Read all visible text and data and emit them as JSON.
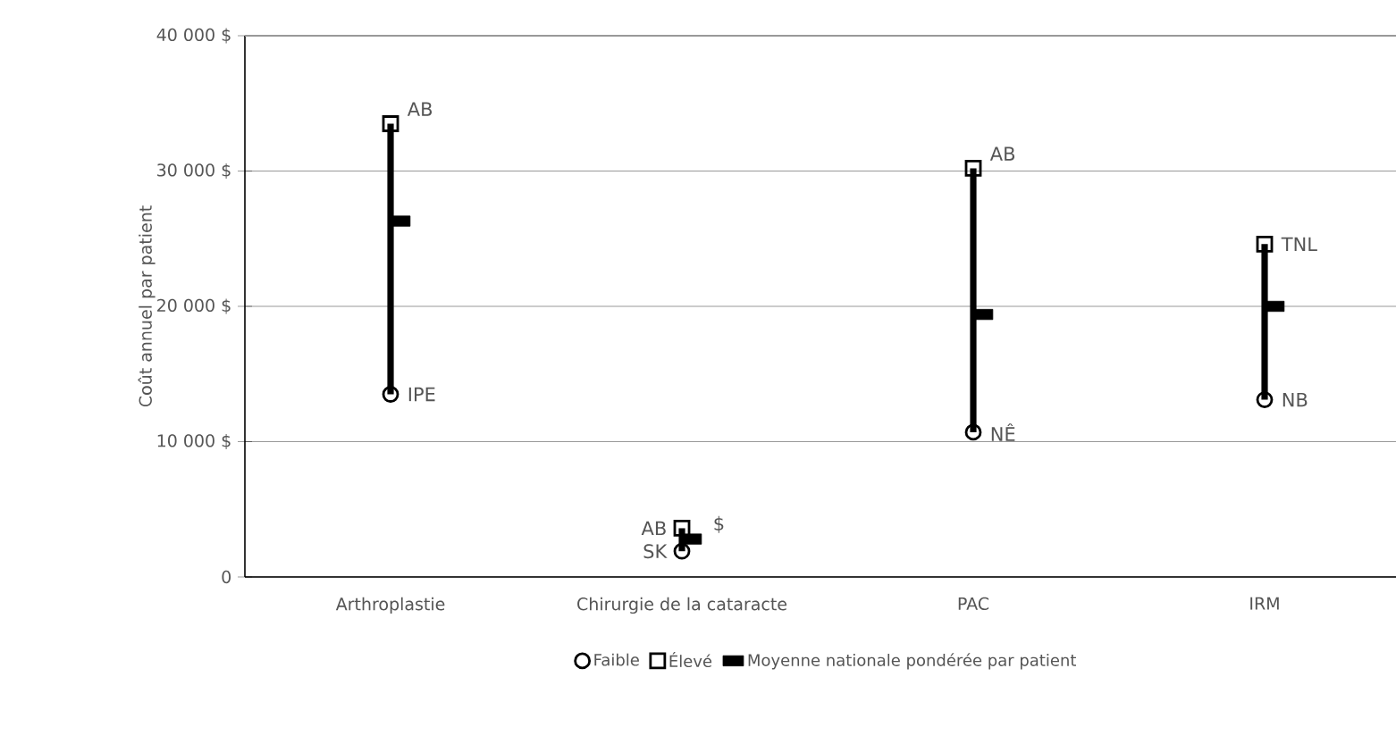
{
  "chart_data": {
    "type": "scatter",
    "ylabel": "Coût annuel par patient",
    "categories": [
      "Arthroplastie",
      "Chirurgie de la cataracte",
      "PAC",
      "IRM"
    ],
    "ylim": [
      0,
      40000
    ],
    "yticks": [
      0,
      {
        "value": 10000,
        "label": "10 000 $"
      },
      {
        "value": 20000,
        "label": "20 000 $"
      },
      {
        "value": 30000,
        "label": "30 000 $"
      },
      {
        "value": 40000,
        "label": "40 000 $"
      }
    ],
    "grid": "y",
    "legend": "bottom",
    "series": [
      {
        "type": "bar",
        "color": "#000000",
        "base": [
          13500,
          1900,
          10700,
          13100
        ],
        "values": [
          20000,
          1700,
          19500,
          11500
        ]
      },
      {
        "name": "Faible",
        "color": "#000000",
        "marker": "circle",
        "values": [
          13500,
          1900,
          10700,
          13100
        ]
      },
      {
        "name": "Élevé",
        "color": "#000000",
        "marker": "square",
        "values": [
          33500,
          3600,
          30200,
          24600
        ]
      },
      {
        "name": "Moyenne nationale pondérée par patient",
        "color": "#000000",
        "values": [
          26300,
          2800,
          19400,
          20000
        ]
      }
    ],
    "annotations": [
      {
        "text": "AB",
        "x": "Arthroplastie",
        "y": 33500
      },
      {
        "text": "IPE",
        "x": "Arthroplastie",
        "y": 13500
      },
      {
        "text": "AB",
        "x": "Chirurgie de la cataracte",
        "y": 3600
      },
      {
        "text": "SK",
        "x": "Chirurgie de la cataracte",
        "y": 1900
      },
      {
        "text": "$",
        "x": "Chirurgie de la cataracte",
        "y": 2800
      },
      {
        "text": "AB",
        "x": "PAC",
        "y": 30200
      },
      {
        "text": "NÊ",
        "x": "PAC",
        "y": 10700
      },
      {
        "text": "TNL",
        "x": "IRM",
        "y": 24600
      },
      {
        "text": "NB",
        "x": "IRM",
        "y": 13100
      }
    ]
  }
}
